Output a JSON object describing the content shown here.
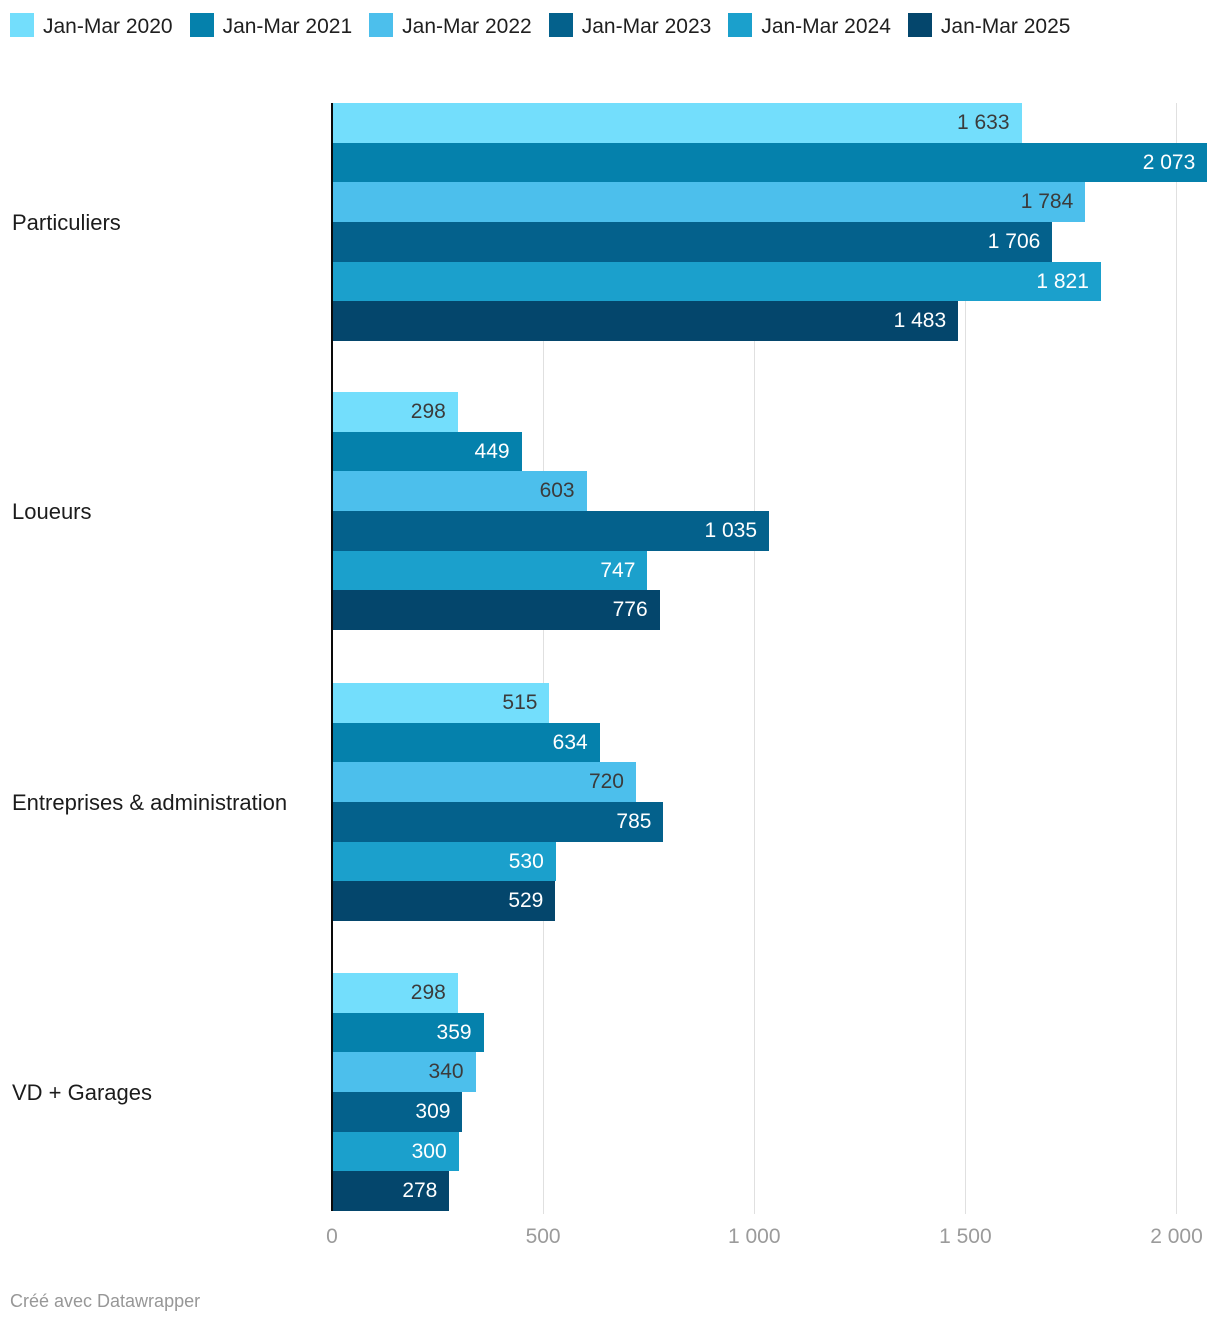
{
  "chart_data": {
    "type": "bar",
    "orientation": "horizontal",
    "title": "",
    "xlabel": "",
    "ylabel": "",
    "xlim": [
      0,
      2077
    ],
    "grid": true,
    "legend_position": "top",
    "categories": [
      "Particuliers",
      "Loueurs",
      "Entreprises & administration",
      "VD + Garages"
    ],
    "series": [
      {
        "name": "Jan-Mar 2020",
        "color": "#73DEFC",
        "label_color": "#3b3b3b",
        "values": [
          1633,
          298,
          515,
          298
        ],
        "labels": [
          "1 633",
          "298",
          "515",
          "298"
        ]
      },
      {
        "name": "Jan-Mar 2021",
        "color": "#0581AC",
        "label_color": "#ffffff",
        "values": [
          2073,
          449,
          634,
          359
        ],
        "labels": [
          "2 073",
          "449",
          "634",
          "359"
        ]
      },
      {
        "name": "Jan-Mar 2022",
        "color": "#4CBFEC",
        "label_color": "#3b3b3b",
        "values": [
          1784,
          603,
          720,
          340
        ],
        "labels": [
          "1 784",
          "603",
          "720",
          "340"
        ]
      },
      {
        "name": "Jan-Mar 2023",
        "color": "#04618C",
        "label_color": "#ffffff",
        "values": [
          1706,
          1035,
          785,
          309
        ],
        "labels": [
          "1 706",
          "1 035",
          "785",
          "309"
        ]
      },
      {
        "name": "Jan-Mar 2024",
        "color": "#1BA0CC",
        "label_color": "#ffffff",
        "values": [
          1821,
          747,
          530,
          300
        ],
        "labels": [
          "1 821",
          "747",
          "530",
          "300"
        ]
      },
      {
        "name": "Jan-Mar 2025",
        "color": "#04466C",
        "label_color": "#ffffff",
        "values": [
          1483,
          776,
          529,
          278
        ],
        "labels": [
          "1 483",
          "776",
          "529",
          "278"
        ]
      }
    ],
    "x_ticks": [
      {
        "value": 0,
        "label": "0"
      },
      {
        "value": 500,
        "label": "500"
      },
      {
        "value": 1000,
        "label": "1 000"
      },
      {
        "value": 1500,
        "label": "1 500"
      },
      {
        "value": 2000,
        "label": "2 000"
      }
    ]
  },
  "footer": {
    "credit": "Créé avec Datawrapper"
  }
}
